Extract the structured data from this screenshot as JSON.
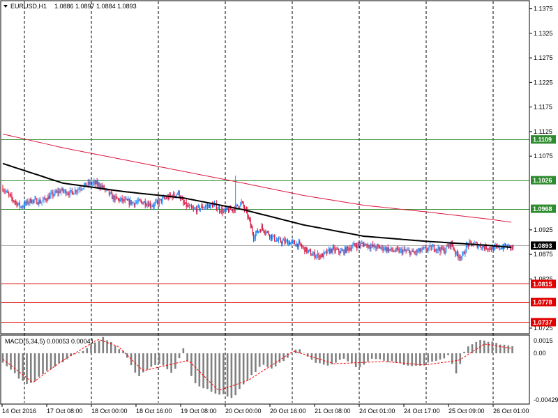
{
  "colors": {
    "background": "#ffffff",
    "frame": "#000000",
    "grid": "#000000",
    "bull": "#1e90ff",
    "bear": "#dc143c",
    "ma_fast": "#000000",
    "ma_slow": "#dc143c",
    "level_green": "#2e8b2e",
    "level_red": "#e00000",
    "macd_hist": "#808080",
    "macd_signal": "#ff0000",
    "price_tag": "#000000"
  },
  "header": {
    "dropdown_icon": "triangle-down-icon",
    "symbol": "EURUSD,H1",
    "ohlc": "1.0886 1.0897 1.0884 1.0893"
  },
  "price_scale": [
    "1.1375",
    "1.1325",
    "1.1275",
    "1.1225",
    "1.1175",
    "1.1125",
    "1.1075",
    "1.0925",
    "1.0875",
    "1.0825",
    "1.0725"
  ],
  "level_tags": [
    {
      "value": "1.1109",
      "kind": "green"
    },
    {
      "value": "1.1026",
      "kind": "green"
    },
    {
      "value": "1.0968",
      "kind": "green"
    },
    {
      "value": "1.0893",
      "kind": "current"
    },
    {
      "value": "1.0815",
      "kind": "red"
    },
    {
      "value": "1.0778",
      "kind": "red"
    },
    {
      "value": "1.0737",
      "kind": "red"
    }
  ],
  "time_labels": [
    "14 Oct 2016",
    "17 Oct 08:00",
    "18 Oct 00:00",
    "18 Oct 16:00",
    "19 Oct 08:00",
    "20 Oct 00:00",
    "20 Oct 16:00",
    "21 Oct 08:00",
    "24 Oct 01:00",
    "24 Oct 17:00",
    "25 Oct 09:00",
    "26 Oct 01:00"
  ],
  "macd": {
    "label": "MACD(5,34,5) 0.00053 0.00041",
    "scale": [
      "0.0015",
      "0.00",
      "-0.00429"
    ]
  },
  "chart_data": {
    "type": "candlestick",
    "symbol": "EURUSD",
    "timeframe": "H1",
    "last_ohlc": {
      "open": 1.0886,
      "high": 1.0897,
      "low": 1.0884,
      "close": 1.0893
    },
    "ylim": [
      1.0715,
      1.139
    ],
    "horizontal_levels": [
      1.1109,
      1.1026,
      1.0968,
      1.0815,
      1.0778,
      1.0737
    ],
    "current_price": 1.0893,
    "close_path": [
      [
        0,
        1.101
      ],
      [
        8,
        1.099
      ],
      [
        18,
        1.0972
      ],
      [
        28,
        1.0985
      ],
      [
        38,
        1.0982
      ],
      [
        48,
        1.0995
      ],
      [
        58,
        1.1005
      ],
      [
        68,
        1.1
      ],
      [
        78,
        1.1012
      ],
      [
        88,
        1.102
      ],
      [
        95,
        1.1018
      ],
      [
        100,
        1.101
      ],
      [
        110,
        1.099
      ],
      [
        120,
        1.0984
      ],
      [
        130,
        1.098
      ],
      [
        140,
        1.0982
      ],
      [
        150,
        1.0975
      ],
      [
        160,
        1.0988
      ],
      [
        170,
        1.0995
      ],
      [
        175,
        1.1
      ],
      [
        180,
        1.0978
      ],
      [
        190,
        1.0965
      ],
      [
        200,
        1.0972
      ],
      [
        210,
        1.0976
      ],
      [
        220,
        1.0962
      ],
      [
        230,
        1.0968
      ],
      [
        238,
        1.098
      ],
      [
        244,
        1.0955
      ],
      [
        250,
        1.0912
      ],
      [
        258,
        1.093
      ],
      [
        266,
        1.0915
      ],
      [
        274,
        1.0902
      ],
      [
        285,
        1.09
      ],
      [
        295,
        1.0895
      ],
      [
        308,
        1.0875
      ],
      [
        318,
        1.0872
      ],
      [
        328,
        1.0885
      ],
      [
        338,
        1.088
      ],
      [
        350,
        1.0893
      ],
      [
        360,
        1.0896
      ],
      [
        370,
        1.089
      ],
      [
        380,
        1.0888
      ],
      [
        390,
        1.0882
      ],
      [
        400,
        1.0882
      ],
      [
        410,
        1.0878
      ],
      [
        420,
        1.0885
      ],
      [
        430,
        1.0889
      ],
      [
        440,
        1.0883
      ],
      [
        447,
        1.0898
      ],
      [
        452,
        1.0875
      ],
      [
        458,
        1.087
      ],
      [
        463,
        1.0895
      ],
      [
        470,
        1.0896
      ],
      [
        480,
        1.089
      ],
      [
        490,
        1.0887
      ],
      [
        500,
        1.0891
      ],
      [
        509,
        1.089
      ]
    ],
    "ma_fast_path": [
      [
        0,
        1.106
      ],
      [
        60,
        1.102
      ],
      [
        120,
        1.1003
      ],
      [
        180,
        1.099
      ],
      [
        240,
        1.0966
      ],
      [
        300,
        1.0935
      ],
      [
        360,
        1.0912
      ],
      [
        420,
        1.0902
      ],
      [
        480,
        1.0894
      ],
      [
        509,
        1.0889
      ]
    ],
    "ma_slow_path": [
      [
        0,
        1.112
      ],
      [
        60,
        1.1092
      ],
      [
        120,
        1.1068
      ],
      [
        180,
        1.1044
      ],
      [
        240,
        1.102
      ],
      [
        300,
        1.0995
      ],
      [
        360,
        1.0975
      ],
      [
        420,
        1.0962
      ],
      [
        480,
        1.0948
      ],
      [
        509,
        1.094
      ]
    ],
    "macd_hist_path": [
      [
        0,
        -0.0008
      ],
      [
        25,
        -0.0028
      ],
      [
        50,
        -0.0012
      ],
      [
        75,
        0.0
      ],
      [
        100,
        0.0014
      ],
      [
        120,
        0.0002
      ],
      [
        135,
        -0.002
      ],
      [
        155,
        -0.0008
      ],
      [
        170,
        -0.0017
      ],
      [
        180,
        0.0004
      ],
      [
        190,
        -0.0025
      ],
      [
        210,
        -0.0034
      ],
      [
        230,
        -0.0038
      ],
      [
        245,
        -0.0022
      ],
      [
        258,
        -0.001
      ],
      [
        270,
        -0.0013
      ],
      [
        285,
        -0.0003
      ],
      [
        295,
        0.0005
      ],
      [
        310,
        -0.0008
      ],
      [
        325,
        -0.0011
      ],
      [
        340,
        -0.0004
      ],
      [
        355,
        -0.0013
      ],
      [
        370,
        -0.0004
      ],
      [
        390,
        -0.0008
      ],
      [
        410,
        -0.0012
      ],
      [
        430,
        -0.0007
      ],
      [
        445,
        -0.0002
      ],
      [
        452,
        -0.0018
      ],
      [
        462,
        0.0006
      ],
      [
        475,
        0.0011
      ],
      [
        490,
        0.0009
      ],
      [
        509,
        0.0005
      ]
    ],
    "macd_signal_path": [
      [
        0,
        -0.0005
      ],
      [
        30,
        -0.0025
      ],
      [
        60,
        -0.0006
      ],
      [
        95,
        0.0012
      ],
      [
        115,
        0.0006
      ],
      [
        140,
        -0.0015
      ],
      [
        185,
        -0.0006
      ],
      [
        215,
        -0.0032
      ],
      [
        245,
        -0.0023
      ],
      [
        290,
        0.0002
      ],
      [
        330,
        -0.0009
      ],
      [
        380,
        -0.0007
      ],
      [
        420,
        -0.001
      ],
      [
        455,
        -0.0006
      ],
      [
        480,
        0.0008
      ],
      [
        509,
        0.0004
      ]
    ],
    "macd_ylim": [
      -0.00429,
      0.0015
    ]
  }
}
